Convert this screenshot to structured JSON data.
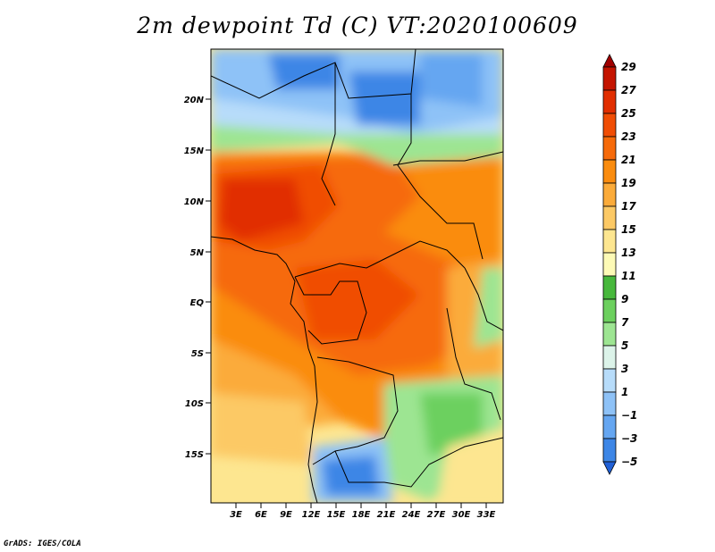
{
  "title": "2m dewpoint Td (C) VT:2020100609",
  "footer": "GrADS: IGES/COLA",
  "map": {
    "variable": "2m dewpoint temperature",
    "units": "C",
    "valid_time": "2020100609",
    "lon_range": [
      0,
      35
    ],
    "lat_range": [
      -20,
      24
    ],
    "lat_ticks": [
      {
        "value": 20,
        "label": "20N"
      },
      {
        "value": 15,
        "label": "15N"
      },
      {
        "value": 10,
        "label": "10N"
      },
      {
        "value": 5,
        "label": "5N"
      },
      {
        "value": 0,
        "label": "EQ"
      },
      {
        "value": -5,
        "label": "5S"
      },
      {
        "value": -10,
        "label": "10S"
      },
      {
        "value": -15,
        "label": "15S"
      }
    ],
    "lon_ticks": [
      {
        "value": 3,
        "label": "3E"
      },
      {
        "value": 6,
        "label": "6E"
      },
      {
        "value": 9,
        "label": "9E"
      },
      {
        "value": 12,
        "label": "12E"
      },
      {
        "value": 15,
        "label": "15E"
      },
      {
        "value": 18,
        "label": "18E"
      },
      {
        "value": 21,
        "label": "21E"
      },
      {
        "value": 24,
        "label": "24E"
      },
      {
        "value": 27,
        "label": "27E"
      },
      {
        "value": 30,
        "label": "30E"
      },
      {
        "value": 33,
        "label": "33E"
      }
    ]
  },
  "colorbar": {
    "labels": [
      "29",
      "27",
      "25",
      "23",
      "21",
      "19",
      "17",
      "15",
      "13",
      "11",
      "9",
      "7",
      "5",
      "3",
      "1",
      "−1",
      "−3",
      "−5"
    ],
    "colors": [
      "#a00000",
      "#c41400",
      "#e12e00",
      "#f04d05",
      "#f66a0a",
      "#fa8c0f",
      "#fbab3a",
      "#fcc965",
      "#fde690",
      "#fdfab6",
      "#47b83c",
      "#6cd05e",
      "#9de592",
      "#dcf3e9",
      "#b7dcfa",
      "#8ec2f7",
      "#65a6f1",
      "#3d86e6",
      "#2060d6"
    ]
  }
}
